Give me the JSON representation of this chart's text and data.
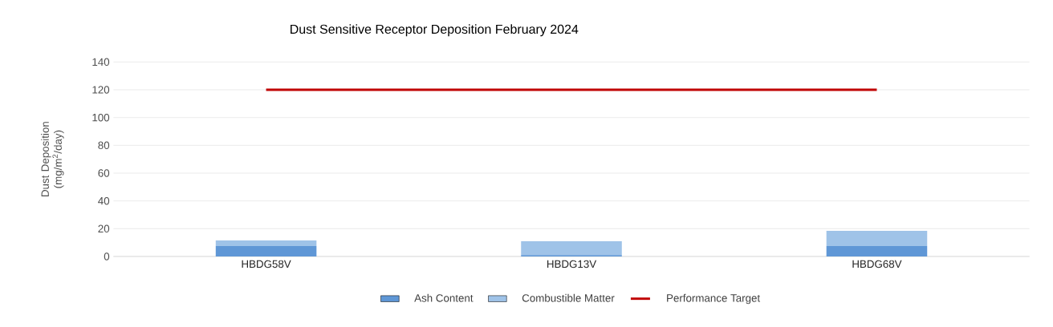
{
  "chart_data": {
    "type": "bar",
    "title": "Dust Sensitive Receptor Deposition February 2024",
    "ylabel": "Dust Deposition (mg/m$^{2}$/day)",
    "categories": [
      "HBDG58V",
      "HBDG13V",
      "HBDG68V"
    ],
    "stacked": true,
    "series": [
      {
        "name": "Ash Content",
        "color": "#5f97d6",
        "values": [
          7.5,
          1,
          7.5
        ]
      },
      {
        "name": "Combustible Matter",
        "color": "#9fc3e8",
        "values": [
          4,
          10,
          11
        ]
      },
      {
        "name": "Performance Target",
        "type": "line",
        "color": "#c00000",
        "values": [
          120,
          120,
          120
        ]
      }
    ],
    "ylim": [
      0,
      140
    ],
    "yticks": [
      0,
      20,
      40,
      60,
      80,
      100,
      120,
      140
    ],
    "grid": "y",
    "legend": "bottom"
  }
}
